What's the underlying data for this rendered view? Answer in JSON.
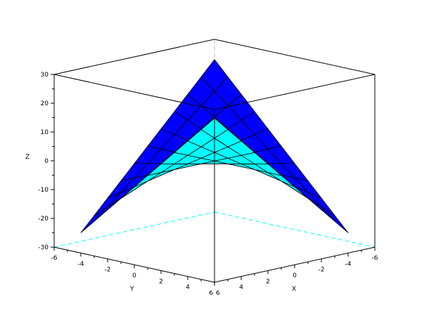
{
  "chart_data": {
    "type": "surface3d",
    "function": "z = x*y",
    "x_range": [
      -5,
      5
    ],
    "y_range": [
      -5,
      5
    ],
    "grid_step": 1,
    "xlabel": "X",
    "ylabel": "Y",
    "zlabel": "Z",
    "xlim": [
      -6,
      6
    ],
    "ylim": [
      -6,
      6
    ],
    "zlim": [
      -30,
      30
    ],
    "x_ticks": [
      "6",
      "4",
      "2",
      "0",
      "-2",
      "-4",
      "-6"
    ],
    "y_ticks": [
      "-6",
      "-4",
      "-2",
      "0",
      "2",
      "4",
      "6"
    ],
    "z_ticks": [
      "30",
      "20",
      "10",
      "0",
      "-10",
      "-20",
      "-30"
    ],
    "colors": {
      "top_face": "#0000ff",
      "bottom_face": "#00ffff",
      "box": "#000000",
      "hidden_edges": "#00ffff"
    }
  }
}
